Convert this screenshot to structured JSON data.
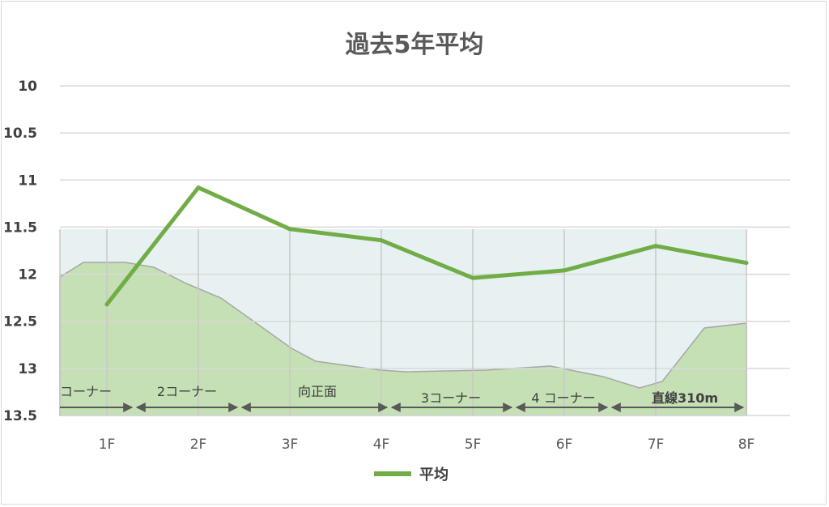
{
  "chart_data": {
    "type": "line",
    "title": "過去5年平均",
    "categories": [
      "1F",
      "2F",
      "3F",
      "4F",
      "5F",
      "6F",
      "7F",
      "8F"
    ],
    "y_ticks": [
      "10",
      "10.5",
      "11",
      "11.5",
      "12",
      "12.5",
      "13",
      "13.5"
    ],
    "ylim": [
      10,
      13.5
    ],
    "y_reversed": true,
    "grid": true,
    "legend": "bottom",
    "series": [
      {
        "name": "平均",
        "color": "#70ad47",
        "values": [
          12.32,
          11.08,
          11.52,
          11.64,
          12.04,
          11.96,
          11.7,
          11.88
        ]
      }
    ],
    "course_segments": [
      "コーナー",
      "2コーナー",
      "向正面",
      "3コーナー",
      "4 コーナー",
      "直線310m"
    ],
    "colors": {
      "profile_fill": "#c5e0b4",
      "band_fill": "#e8f1f2",
      "grid": "#d9d9d9"
    }
  }
}
